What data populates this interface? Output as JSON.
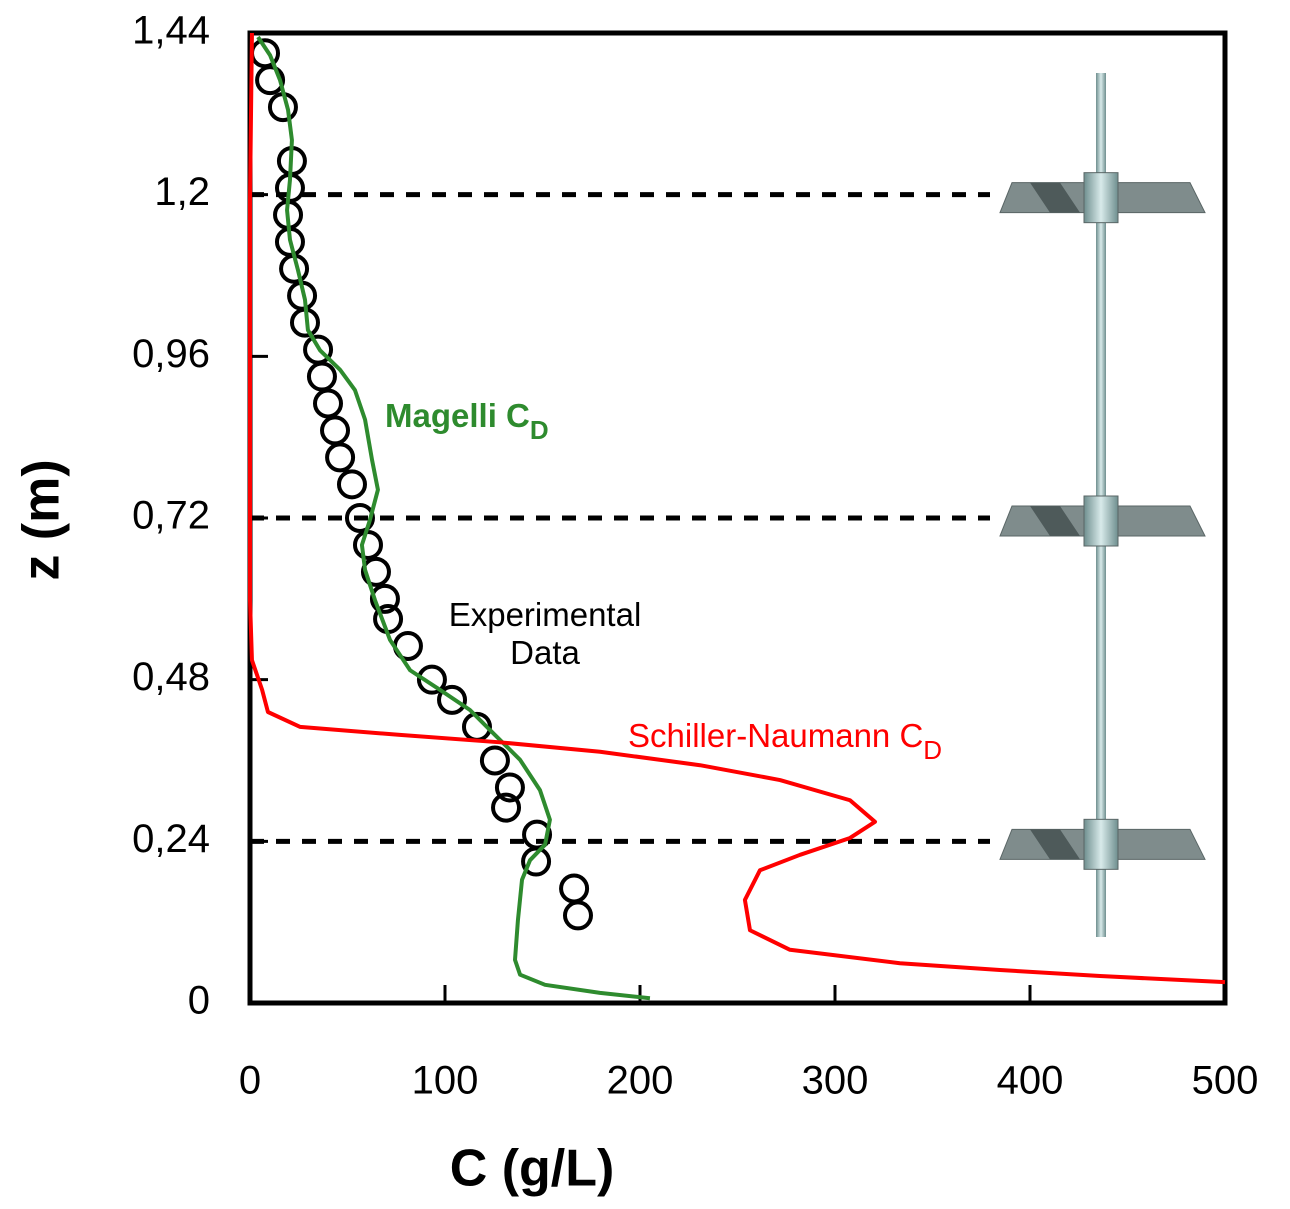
{
  "chart_data": {
    "type": "line",
    "xlabel": "C (g/L)",
    "ylabel": "z (m)",
    "xlim": [
      0,
      500
    ],
    "xticks": [
      0,
      100,
      200,
      300,
      400,
      500
    ],
    "ylim": [
      0,
      1.44
    ],
    "yticks": [
      0,
      {
        "value": 0.24,
        "label": "0,24"
      },
      {
        "value": 0.48,
        "label": "0,48"
      },
      {
        "value": 0.72,
        "label": "0,72"
      },
      {
        "value": 0.96,
        "label": "0,96"
      },
      {
        "value": 1.2,
        "label": "1,2"
      },
      {
        "value": 1.44,
        "label": "1,44"
      }
    ],
    "hlines": [
      1.2,
      0.72,
      0.24
    ],
    "series": [
      {
        "name": "Experimental Data",
        "type": "scatter",
        "color": "#000000",
        "x": [
          7.7,
          10.3,
          16.9,
          21.5,
          20.5,
          19.5,
          20.5,
          22.6,
          26.7,
          28.2,
          34.9,
          36.9,
          40.0,
          43.6,
          46.2,
          52.3,
          56.4,
          60.5,
          64.6,
          69.2,
          70.8,
          81.0,
          93.3,
          103.6,
          116.4,
          125.6,
          133.3,
          131.3,
          147.2,
          146.7,
          166.2,
          168.2
        ],
        "values": [
          1.41,
          1.37,
          1.33,
          1.25,
          1.21,
          1.17,
          1.13,
          1.09,
          1.05,
          1.01,
          0.97,
          0.93,
          0.89,
          0.85,
          0.81,
          0.77,
          0.72,
          0.68,
          0.64,
          0.6,
          0.57,
          0.53,
          0.48,
          0.45,
          0.41,
          0.36,
          0.32,
          0.29,
          0.25,
          0.21,
          0.17,
          0.13
        ]
      },
      {
        "name": "Magelli C",
        "subscript": "D",
        "type": "line",
        "color": "#2e8b2e",
        "x": [
          4.1,
          10.3,
          15.4,
          19.5,
          21.5,
          20.5,
          19.0,
          20.5,
          24.6,
          28.2,
          29.7,
          35.9,
          46.2,
          53.8,
          59.0,
          62.6,
          65.6,
          61.5,
          57.4,
          59.0,
          64.1,
          71.8,
          82.1,
          97.4,
          112.8,
          125.6,
          138.5,
          148.7,
          153.8,
          151.3,
          143.6,
          139.5,
          137.4,
          135.9,
          138.5,
          151.3,
          179.5,
          205.1
        ],
        "values": [
          1.434,
          1.407,
          1.37,
          1.326,
          1.281,
          1.222,
          1.177,
          1.133,
          1.088,
          1.044,
          0.999,
          0.969,
          0.94,
          0.91,
          0.866,
          0.806,
          0.762,
          0.717,
          0.68,
          0.643,
          0.598,
          0.539,
          0.494,
          0.465,
          0.435,
          0.398,
          0.361,
          0.316,
          0.272,
          0.235,
          0.212,
          0.183,
          0.123,
          0.064,
          0.042,
          0.027,
          0.015,
          0.007
        ]
      },
      {
        "name": "Schiller-Naumann C",
        "subscript": "D",
        "type": "line",
        "color": "#ff0000",
        "x": [
          1.0,
          0,
          0,
          0,
          1.0,
          6.2,
          9.2,
          25.6,
          76.9,
          128.2,
          179.5,
          230.8,
          271.8,
          307.7,
          320.5,
          307.7,
          282.1,
          261.5,
          253.8,
          256.4,
          276.9,
          333.3,
          384.6,
          435.9,
          500
        ],
        "values": [
          1.44,
          1.192,
          0.895,
          0.598,
          0.509,
          0.465,
          0.432,
          0.41,
          0.398,
          0.387,
          0.373,
          0.353,
          0.331,
          0.301,
          0.269,
          0.245,
          0.22,
          0.197,
          0.153,
          0.108,
          0.079,
          0.059,
          0.049,
          0.04,
          0.031
        ]
      }
    ]
  }
}
